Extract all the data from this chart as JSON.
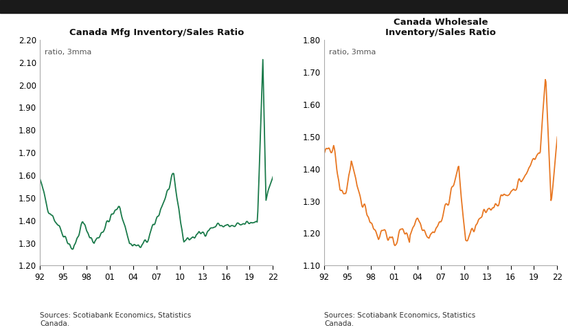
{
  "title1": "Canada Mfg Inventory/Sales Ratio",
  "title2": "Canada Wholesale\nInventory/Sales Ratio",
  "subtitle": "ratio, 3mma",
  "source": "Sources: Scotiabank Economics, Statistics\nCanada.",
  "color1": "#1a7a4a",
  "color2": "#e87722",
  "ylim1": [
    1.2,
    2.2
  ],
  "ylim2": [
    1.1,
    1.8
  ],
  "yticks1": [
    1.2,
    1.3,
    1.4,
    1.5,
    1.6,
    1.7,
    1.8,
    1.9,
    2.0,
    2.1,
    2.2
  ],
  "yticks2": [
    1.1,
    1.2,
    1.3,
    1.4,
    1.5,
    1.6,
    1.7,
    1.8
  ],
  "xtick_labels": [
    "92",
    "95",
    "98",
    "01",
    "04",
    "07",
    "10",
    "13",
    "16",
    "19",
    "22"
  ],
  "bg_color": "#ffffff",
  "panel_bg": "#ffffff",
  "linewidth": 1.3,
  "top_bar_color": "#1a1a1a",
  "top_bar_height": 0.04
}
